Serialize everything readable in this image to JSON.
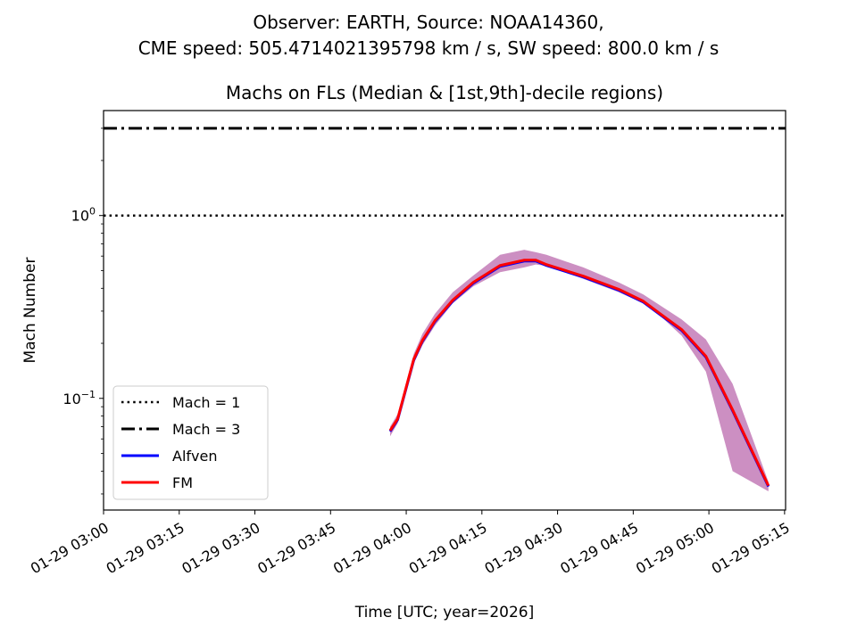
{
  "chart_data": {
    "type": "line",
    "suptitle_line1": "Observer: EARTH, Source: NOAA14360,",
    "suptitle_line2": "CME speed: 505.4714021395798 km / s, SW speed: 800.0 km / s",
    "title": "Machs on FLs (Median & [1st,9th]-decile regions)",
    "xlabel": "Time [UTC; year=2026]",
    "ylabel": "Mach Number",
    "yscale": "log",
    "ylim": [
      0.0245,
      3.75
    ],
    "xlim": [
      "03:00:00",
      "05:15:12"
    ],
    "date_prefix": "01-29",
    "x_ticks": [
      "01-29 03:00",
      "01-29 03:15",
      "01-29 03:30",
      "01-29 03:45",
      "01-29 04:00",
      "01-29 04:15",
      "01-29 04:30",
      "01-29 04:45",
      "01-29 05:00",
      "01-29 05:15"
    ],
    "x_tick_times": [
      "03:00:00",
      "03:15:00",
      "03:30:00",
      "03:45:00",
      "04:00:00",
      "04:15:00",
      "04:30:00",
      "04:45:00",
      "05:00:00",
      "05:15:00"
    ],
    "y_ticks": [
      {
        "value": 1,
        "base": "10",
        "exp": "0"
      },
      {
        "value": 0.1,
        "base": "10",
        "exp": "−1"
      }
    ],
    "hlines": [
      {
        "name": "Mach = 1",
        "value": 1,
        "style": "dotted",
        "color": "#000000"
      },
      {
        "name": "Mach = 3",
        "value": 3,
        "style": "dashdot",
        "color": "#000000"
      }
    ],
    "x": [
      "03:56:48",
      "03:58:18",
      "04:01:30",
      "04:03:12",
      "04:05:42",
      "04:09:12",
      "04:13:18",
      "04:18:36",
      "04:23:24",
      "04:25:42",
      "04:27:48",
      "04:35:06",
      "04:42:12",
      "04:47:00",
      "04:50:30",
      "04:54:36",
      "04:59:24",
      "05:04:42",
      "05:11:48"
    ],
    "series": [
      {
        "name": "Alfven",
        "color": "#0000ff",
        "values": [
          0.0667,
          0.0772,
          0.164,
          0.207,
          0.266,
          0.344,
          0.431,
          0.533,
          0.57,
          0.57,
          0.539,
          0.466,
          0.394,
          0.34,
          0.288,
          0.238,
          0.17,
          0.0865,
          0.0333
        ]
      },
      {
        "name": "FM",
        "color": "#ff0000",
        "values": [
          0.0667,
          0.0772,
          0.164,
          0.207,
          0.266,
          0.344,
          0.431,
          0.533,
          0.57,
          0.57,
          0.539,
          0.466,
          0.394,
          0.34,
          0.288,
          0.238,
          0.17,
          0.0865,
          0.0333
        ]
      }
    ],
    "band": {
      "name": "[1st,9th]-decile region",
      "color": "#cc8fc2",
      "upper": [
        0.07,
        0.082,
        0.175,
        0.225,
        0.29,
        0.38,
        0.47,
        0.61,
        0.65,
        0.63,
        0.61,
        0.52,
        0.43,
        0.37,
        0.32,
        0.27,
        0.21,
        0.12,
        0.035
      ],
      "lower": [
        0.062,
        0.073,
        0.155,
        0.195,
        0.25,
        0.33,
        0.41,
        0.49,
        0.52,
        0.54,
        0.53,
        0.45,
        0.38,
        0.33,
        0.28,
        0.22,
        0.14,
        0.04,
        0.031
      ]
    },
    "legend": {
      "position": "lower-left",
      "entries": [
        "Mach = 1",
        "Mach = 3",
        "Alfven",
        "FM"
      ]
    },
    "grid": false
  }
}
